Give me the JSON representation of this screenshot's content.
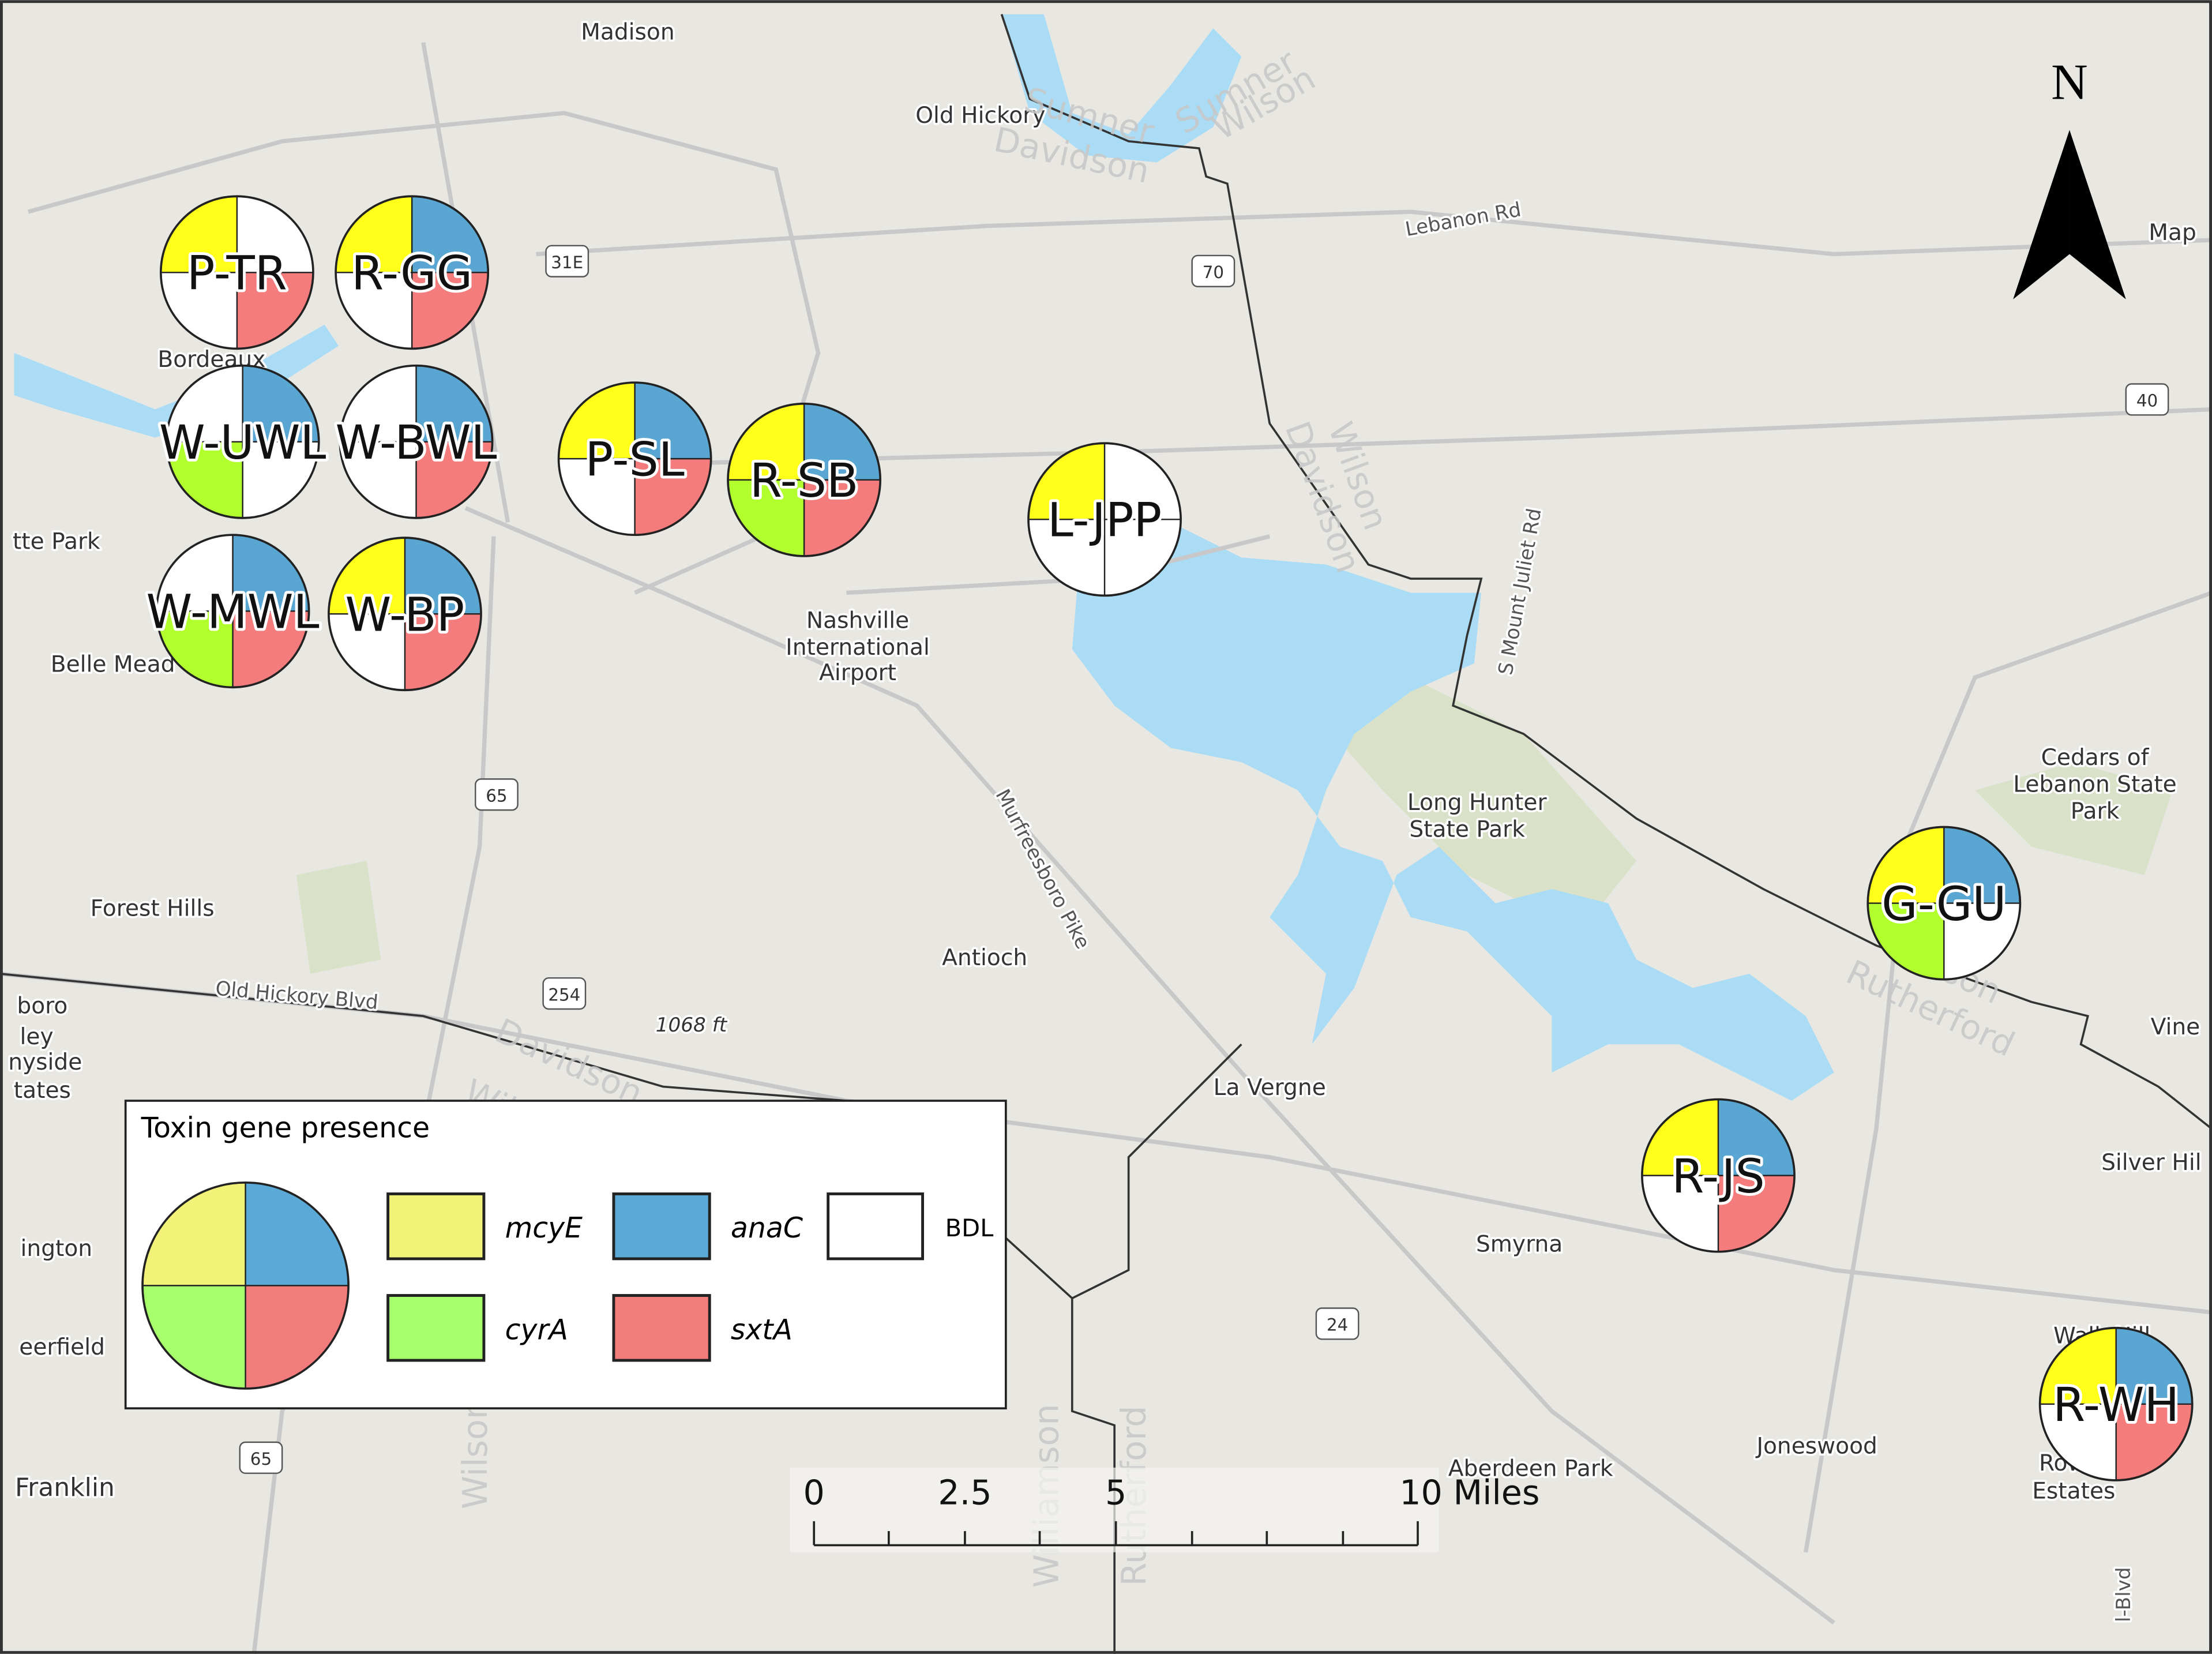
{
  "legend": {
    "title": "Toxin gene presence",
    "genes": [
      {
        "name": "mcyE",
        "color": "#f2f279"
      },
      {
        "name": "anaC",
        "color": "#5ba9d6"
      },
      {
        "name": "cyrA",
        "color": "#a6ff6b"
      },
      {
        "name": "sxtA",
        "color": "#f27c7c"
      }
    ],
    "bdl": "BDL"
  },
  "pie_colors": {
    "mcyE": "#ffff1a",
    "anaC": "#5aa6d2",
    "cyrA": "#b2ff2e",
    "sxtA": "#f47c7c"
  },
  "sites": [
    {
      "label": "P-TR",
      "present": [
        "mcyE",
        "sxtA"
      ]
    },
    {
      "label": "R-GG",
      "present": [
        "mcyE",
        "anaC",
        "sxtA"
      ]
    },
    {
      "label": "W-UWL",
      "present": [
        "anaC",
        "cyrA"
      ]
    },
    {
      "label": "W-BWL",
      "present": [
        "anaC",
        "sxtA"
      ]
    },
    {
      "label": "P-SL",
      "present": [
        "mcyE",
        "anaC",
        "sxtA"
      ]
    },
    {
      "label": "R-SB",
      "present": [
        "mcyE",
        "anaC",
        "cyrA",
        "sxtA"
      ]
    },
    {
      "label": "L-JPP",
      "present": [
        "mcyE"
      ]
    },
    {
      "label": "W-MWL",
      "present": [
        "anaC",
        "cyrA",
        "sxtA"
      ]
    },
    {
      "label": "W-BP",
      "present": [
        "mcyE",
        "anaC",
        "sxtA"
      ]
    },
    {
      "label": "G-GU",
      "present": [
        "mcyE",
        "anaC",
        "cyrA"
      ]
    },
    {
      "label": "R-JS",
      "present": [
        "mcyE",
        "anaC",
        "sxtA"
      ]
    },
    {
      "label": "R-WH",
      "present": [
        "mcyE",
        "anaC",
        "sxtA"
      ]
    }
  ],
  "places": [
    "Madison",
    "Old Hickory",
    "Bordeaux",
    "tte Park",
    "Belle Mead",
    "Nashville",
    "International",
    "Airport",
    "Forest Hills",
    "Antioch",
    "La Vergne",
    "Smyrna",
    "Joneswood",
    "Aberdeen Park",
    "Long Hunter",
    "State Park",
    "Cedars of",
    "Lebanon State",
    "Park",
    "Map",
    "Vine",
    "Silver Hil",
    "Franklin",
    "ington",
    "eerfield",
    "boro",
    "ley",
    "nyside",
    "tates",
    "Walk Hill",
    "Row",
    "Estates",
    "1068 ft"
  ],
  "roads": [
    "Lebanon Rd",
    "Old Hickory Blvd",
    "Murfreesboro Pike",
    "S Mount Juliet Rd",
    "l-Blvd"
  ],
  "counties": [
    "Sumner",
    "Sumner",
    "Davidson",
    "Wilson",
    "Davidson",
    "Wilson",
    "Wilson",
    "Rutherford",
    "Davidson",
    "Willi",
    "Williamson",
    "Rutherford",
    "Wilson"
  ],
  "shields": [
    "31E",
    "70",
    "40",
    "65",
    "254",
    "24",
    "65"
  ],
  "scale_bar": {
    "labels": [
      "0",
      "2.5",
      "5",
      "10 Miles"
    ]
  },
  "north": "N"
}
